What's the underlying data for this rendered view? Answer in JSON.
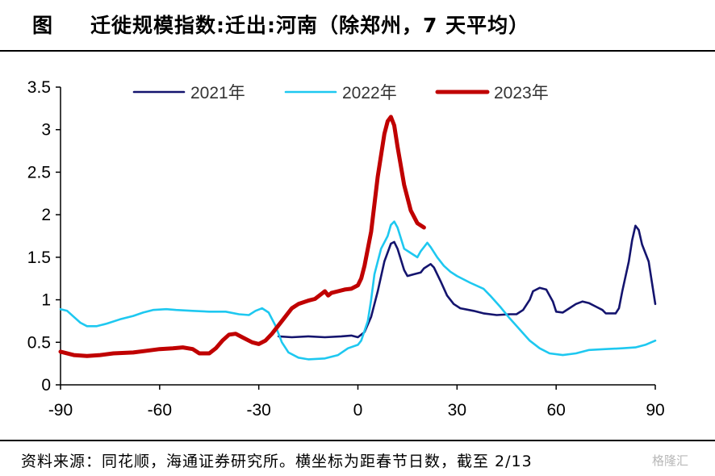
{
  "header": {
    "label": "图",
    "title": "迁徙规模指数:迁出:河南（除郑州，7 天平均）"
  },
  "footer": {
    "source": "资料来源：同花顺，海通证券研究所。横坐标为距春节日数，截至 2/13",
    "watermark": "格隆汇"
  },
  "chart_data": {
    "type": "line",
    "title": "迁徙规模指数:迁出:河南（除郑州，7 天平均）",
    "xlabel": "",
    "ylabel": "",
    "xlim": [
      -90,
      90
    ],
    "ylim": [
      0,
      3.5
    ],
    "xticks": [
      -90,
      -60,
      -30,
      0,
      30,
      60,
      90
    ],
    "yticks": [
      0,
      0.5,
      1,
      1.5,
      2,
      2.5,
      3,
      3.5
    ],
    "ytick_labels": [
      "0",
      "0.5",
      "1",
      "1.5",
      "2",
      "2.5",
      "3",
      "3.5"
    ],
    "grid": false,
    "legend": "top",
    "series": [
      {
        "name": "2021年",
        "color": "#14146e",
        "points": [
          [
            -24,
            0.57
          ],
          [
            -20,
            0.56
          ],
          [
            -15,
            0.57
          ],
          [
            -10,
            0.56
          ],
          [
            -5,
            0.57
          ],
          [
            -2,
            0.58
          ],
          [
            0,
            0.56
          ],
          [
            2,
            0.62
          ],
          [
            4,
            0.8
          ],
          [
            6,
            1.1
          ],
          [
            8,
            1.45
          ],
          [
            10,
            1.66
          ],
          [
            11,
            1.68
          ],
          [
            12,
            1.6
          ],
          [
            14,
            1.35
          ],
          [
            15,
            1.28
          ],
          [
            17,
            1.3
          ],
          [
            19,
            1.32
          ],
          [
            20,
            1.37
          ],
          [
            22,
            1.42
          ],
          [
            23,
            1.38
          ],
          [
            25,
            1.22
          ],
          [
            27,
            1.05
          ],
          [
            29,
            0.95
          ],
          [
            31,
            0.9
          ],
          [
            35,
            0.87
          ],
          [
            38,
            0.84
          ],
          [
            42,
            0.82
          ],
          [
            46,
            0.83
          ],
          [
            48,
            0.83
          ],
          [
            50,
            0.88
          ],
          [
            52,
            1.0
          ],
          [
            53,
            1.1
          ],
          [
            55,
            1.14
          ],
          [
            57,
            1.12
          ],
          [
            59,
            0.98
          ],
          [
            60,
            0.86
          ],
          [
            62,
            0.85
          ],
          [
            64,
            0.9
          ],
          [
            66,
            0.95
          ],
          [
            68,
            0.98
          ],
          [
            70,
            0.96
          ],
          [
            72,
            0.92
          ],
          [
            74,
            0.88
          ],
          [
            75,
            0.84
          ],
          [
            78,
            0.84
          ],
          [
            79,
            0.9
          ],
          [
            80,
            1.1
          ],
          [
            82,
            1.45
          ],
          [
            83,
            1.7
          ],
          [
            84,
            1.87
          ],
          [
            85,
            1.82
          ],
          [
            86,
            1.65
          ],
          [
            88,
            1.45
          ],
          [
            89,
            1.2
          ],
          [
            90,
            0.95
          ]
        ]
      },
      {
        "name": "2022年",
        "color": "#1ec8f0",
        "points": [
          [
            -90,
            0.89
          ],
          [
            -88,
            0.87
          ],
          [
            -86,
            0.8
          ],
          [
            -84,
            0.73
          ],
          [
            -82,
            0.69
          ],
          [
            -79,
            0.69
          ],
          [
            -76,
            0.72
          ],
          [
            -72,
            0.77
          ],
          [
            -68,
            0.81
          ],
          [
            -65,
            0.85
          ],
          [
            -62,
            0.88
          ],
          [
            -58,
            0.89
          ],
          [
            -55,
            0.88
          ],
          [
            -50,
            0.87
          ],
          [
            -45,
            0.86
          ],
          [
            -40,
            0.86
          ],
          [
            -36,
            0.83
          ],
          [
            -33,
            0.82
          ],
          [
            -31,
            0.87
          ],
          [
            -29,
            0.9
          ],
          [
            -27,
            0.85
          ],
          [
            -25,
            0.7
          ],
          [
            -23,
            0.5
          ],
          [
            -21,
            0.38
          ],
          [
            -18,
            0.32
          ],
          [
            -15,
            0.3
          ],
          [
            -10,
            0.31
          ],
          [
            -6,
            0.35
          ],
          [
            -3,
            0.43
          ],
          [
            0,
            0.47
          ],
          [
            1,
            0.52
          ],
          [
            3,
            0.75
          ],
          [
            4,
            1.0
          ],
          [
            5,
            1.3
          ],
          [
            7,
            1.6
          ],
          [
            9,
            1.75
          ],
          [
            10,
            1.88
          ],
          [
            11,
            1.92
          ],
          [
            12,
            1.85
          ],
          [
            14,
            1.6
          ],
          [
            16,
            1.55
          ],
          [
            18,
            1.5
          ],
          [
            19,
            1.57
          ],
          [
            21,
            1.67
          ],
          [
            22,
            1.62
          ],
          [
            24,
            1.5
          ],
          [
            26,
            1.4
          ],
          [
            28,
            1.33
          ],
          [
            30,
            1.28
          ],
          [
            34,
            1.2
          ],
          [
            38,
            1.13
          ],
          [
            40,
            1.05
          ],
          [
            43,
            0.92
          ],
          [
            46,
            0.78
          ],
          [
            49,
            0.65
          ],
          [
            52,
            0.52
          ],
          [
            55,
            0.43
          ],
          [
            58,
            0.37
          ],
          [
            62,
            0.35
          ],
          [
            66,
            0.37
          ],
          [
            70,
            0.41
          ],
          [
            75,
            0.42
          ],
          [
            80,
            0.43
          ],
          [
            84,
            0.44
          ],
          [
            87,
            0.47
          ],
          [
            90,
            0.52
          ]
        ]
      },
      {
        "name": "2023年",
        "color": "#c00000",
        "points": [
          [
            -90,
            0.39
          ],
          [
            -86,
            0.35
          ],
          [
            -82,
            0.34
          ],
          [
            -78,
            0.35
          ],
          [
            -74,
            0.37
          ],
          [
            -68,
            0.38
          ],
          [
            -64,
            0.4
          ],
          [
            -60,
            0.42
          ],
          [
            -56,
            0.43
          ],
          [
            -53,
            0.44
          ],
          [
            -50,
            0.42
          ],
          [
            -48,
            0.37
          ],
          [
            -45,
            0.37
          ],
          [
            -43,
            0.43
          ],
          [
            -41,
            0.52
          ],
          [
            -39,
            0.59
          ],
          [
            -37,
            0.6
          ],
          [
            -35,
            0.56
          ],
          [
            -32,
            0.5
          ],
          [
            -30,
            0.48
          ],
          [
            -28,
            0.52
          ],
          [
            -26,
            0.6
          ],
          [
            -24,
            0.7
          ],
          [
            -22,
            0.8
          ],
          [
            -20,
            0.9
          ],
          [
            -18,
            0.95
          ],
          [
            -15,
            0.99
          ],
          [
            -13,
            1.01
          ],
          [
            -11,
            1.07
          ],
          [
            -10,
            1.1
          ],
          [
            -9,
            1.05
          ],
          [
            -8,
            1.08
          ],
          [
            -6,
            1.1
          ],
          [
            -4,
            1.12
          ],
          [
            -2,
            1.13
          ],
          [
            0,
            1.17
          ],
          [
            1,
            1.25
          ],
          [
            2,
            1.4
          ],
          [
            4,
            1.8
          ],
          [
            6,
            2.45
          ],
          [
            8,
            2.95
          ],
          [
            9,
            3.1
          ],
          [
            10,
            3.15
          ],
          [
            11,
            3.05
          ],
          [
            12,
            2.8
          ],
          [
            14,
            2.35
          ],
          [
            16,
            2.05
          ],
          [
            18,
            1.9
          ],
          [
            20,
            1.85
          ]
        ]
      }
    ]
  }
}
